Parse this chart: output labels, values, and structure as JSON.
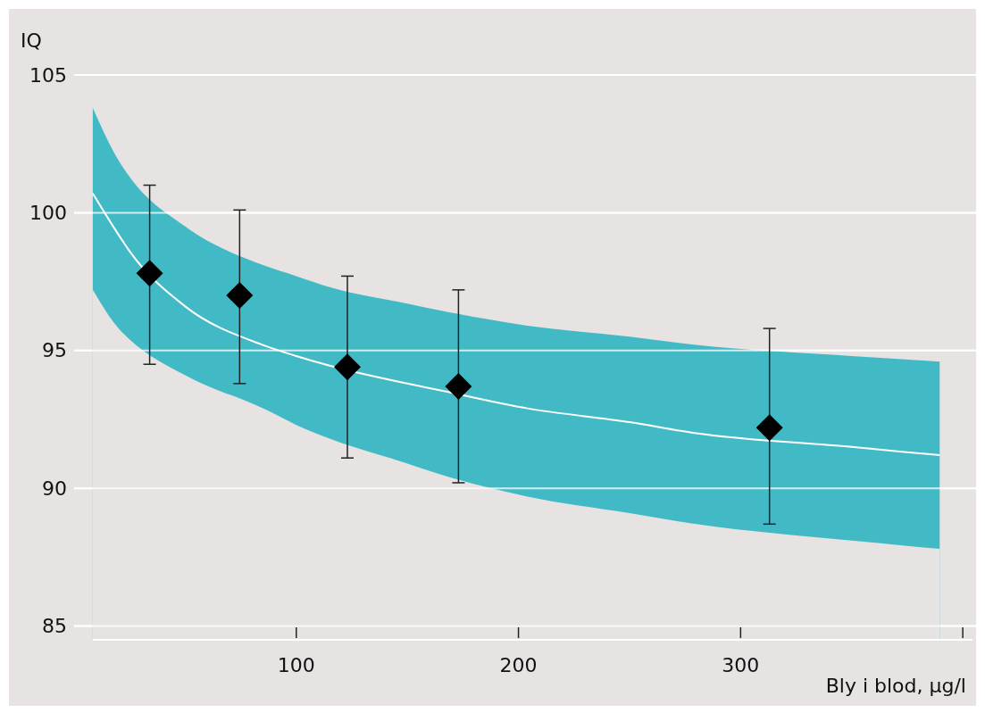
{
  "chart_data": {
    "type": "scatter",
    "xlabel": "Bly i blod, µg/l",
    "ylabel": "IQ",
    "xlim": [
      0,
      410
    ],
    "ylim": [
      84.5,
      105
    ],
    "xticks": [
      100,
      200,
      300,
      {
        "value": 400,
        "label": null
      }
    ],
    "yticks": [
      85,
      90,
      95,
      100,
      105
    ],
    "grid": "y",
    "legend": false,
    "series": [
      {
        "type": "area",
        "color": "#42bac6",
        "x": [
          8.4,
          20,
          25,
          50,
          85,
          100,
          115,
          150,
          165,
          204,
          250,
          280,
          350,
          389.6
        ],
        "values": [
          103.8,
          101.9,
          101.3,
          99.5,
          98.1,
          97.7,
          97.3,
          96.7,
          96.45,
          95.9,
          95.5,
          95.2,
          94.8,
          94.6
        ]
      },
      {
        "type": "area",
        "color": "#e6e3e2",
        "x": [
          8.4,
          20,
          25,
          50,
          85,
          100,
          115,
          150,
          165,
          204,
          250,
          280,
          350,
          389.6
        ],
        "values": [
          97.2,
          95.8,
          95.4,
          94.1,
          92.9,
          92.3,
          91.8,
          90.9,
          90.5,
          89.7,
          89.1,
          88.7,
          88.1,
          87.8
        ]
      },
      {
        "type": "line",
        "color": "#ffffff",
        "x": [
          8.4,
          20,
          25,
          50,
          85,
          100,
          115,
          150,
          165,
          204,
          250,
          280,
          350,
          389.6
        ],
        "values": [
          100.7,
          99.2,
          98.6,
          96.6,
          95.2,
          94.8,
          94.45,
          93.8,
          93.55,
          92.9,
          92.4,
          92.0,
          91.5,
          91.2
        ]
      },
      {
        "color": "#000000",
        "marker": "diamond",
        "x": [
          34,
          74.5,
          123,
          173,
          313
        ],
        "values": [
          97.8,
          97.0,
          94.4,
          93.7,
          92.2
        ],
        "errors": [
          [
            94.5,
            101.0
          ],
          [
            93.8,
            100.1
          ],
          [
            91.1,
            97.7
          ],
          [
            90.2,
            97.2
          ],
          [
            88.7,
            95.8
          ]
        ]
      }
    ]
  }
}
